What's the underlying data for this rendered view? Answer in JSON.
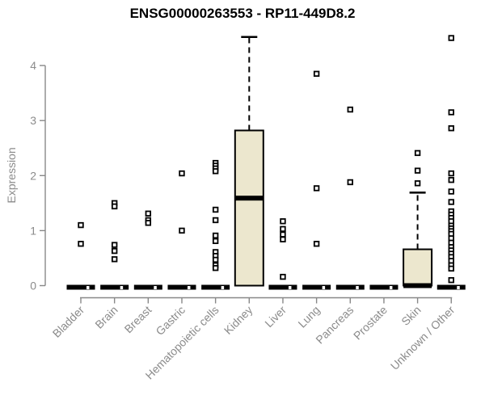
{
  "colors": {
    "background": "#ffffff",
    "title": "#000000",
    "axis": "#888888",
    "axis_label": "#8b8b8b",
    "box_fill": "#ece7ce",
    "box_stroke": "#000000",
    "median": "#000000",
    "point_fill": "#ffffff",
    "point_stroke": "#000000"
  },
  "chart_data": {
    "type": "boxplot",
    "title": "ENSG00000263553 - RP11-449D8.2",
    "ylabel": "Expression",
    "xlabel": "",
    "ylim": [
      0,
      4.6
    ],
    "yticks": [
      0,
      1,
      2,
      3,
      4
    ],
    "grid": false,
    "legend": null,
    "categories": [
      "Bladder",
      "Brain",
      "Breast",
      "Gastric",
      "Hematopoietic cells",
      "Kidney",
      "Liver",
      "Lung",
      "Pancreas",
      "Prostate",
      "Skin",
      "Unknown / Other"
    ],
    "boxes": [
      {
        "label": "Bladder",
        "q1": 0,
        "median": 0,
        "q3": 0,
        "whisker_low": 0,
        "whisker_high": 0,
        "zero_notch": true,
        "points": [
          1.1,
          0.76
        ]
      },
      {
        "label": "Brain",
        "q1": 0,
        "median": 0,
        "q3": 0,
        "whisker_low": 0,
        "whisker_high": 0,
        "zero_notch": true,
        "points": [
          1.5,
          1.44,
          0.74,
          0.63,
          0.48
        ]
      },
      {
        "label": "Breast",
        "q1": 0,
        "median": 0,
        "q3": 0,
        "whisker_low": 0,
        "whisker_high": 0,
        "zero_notch": true,
        "points": [
          1.31,
          1.19,
          1.14
        ]
      },
      {
        "label": "Gastric",
        "q1": 0,
        "median": 0,
        "q3": 0,
        "whisker_low": 0,
        "whisker_high": 0,
        "zero_notch": true,
        "points": [
          2.04,
          1.0
        ]
      },
      {
        "label": "Hematopoietic cells",
        "q1": 0,
        "median": 0,
        "q3": 0,
        "whisker_low": 0,
        "whisker_high": 0,
        "zero_notch": true,
        "points": [
          2.23,
          2.18,
          2.13,
          2.08,
          1.38,
          1.19,
          0.91,
          0.81,
          0.61,
          0.54,
          0.47,
          0.37,
          0.32
        ]
      },
      {
        "label": "Kidney",
        "q1": 0,
        "median": 1.59,
        "q3": 2.82,
        "whisker_low": 0,
        "whisker_high": 4.52,
        "zero_notch": false,
        "points": []
      },
      {
        "label": "Liver",
        "q1": 0,
        "median": 0,
        "q3": 0,
        "whisker_low": 0,
        "whisker_high": 0,
        "zero_notch": true,
        "points": [
          1.17,
          1.03,
          0.93,
          0.84,
          0.16
        ]
      },
      {
        "label": "Lung",
        "q1": 0,
        "median": 0,
        "q3": 0,
        "whisker_low": 0,
        "whisker_high": 0,
        "zero_notch": true,
        "points": [
          3.85,
          1.77,
          0.76
        ]
      },
      {
        "label": "Pancreas",
        "q1": 0,
        "median": 0,
        "q3": 0,
        "whisker_low": 0,
        "whisker_high": 0,
        "zero_notch": true,
        "points": [
          3.2,
          1.88
        ]
      },
      {
        "label": "Prostate",
        "q1": 0,
        "median": 0,
        "q3": 0,
        "whisker_low": 0,
        "whisker_high": 0,
        "zero_notch": true,
        "points": []
      },
      {
        "label": "Skin",
        "q1": 0,
        "median": 0,
        "q3": 0.66,
        "whisker_low": 0,
        "whisker_high": 1.69,
        "zero_notch": false,
        "points": [
          2.41,
          2.09,
          1.86
        ]
      },
      {
        "label": "Unknown / Other",
        "q1": 0,
        "median": 0,
        "q3": 0,
        "whisker_low": 0,
        "whisker_high": 0,
        "zero_notch": true,
        "points": [
          4.5,
          3.15,
          2.86,
          2.04,
          1.92,
          1.71,
          1.52,
          1.35,
          1.29,
          1.23,
          1.17,
          1.09,
          1.04,
          0.99,
          0.94,
          0.86,
          0.78,
          0.7,
          0.64,
          0.58,
          0.52,
          0.45,
          0.37,
          0.31,
          0.1
        ]
      }
    ]
  }
}
